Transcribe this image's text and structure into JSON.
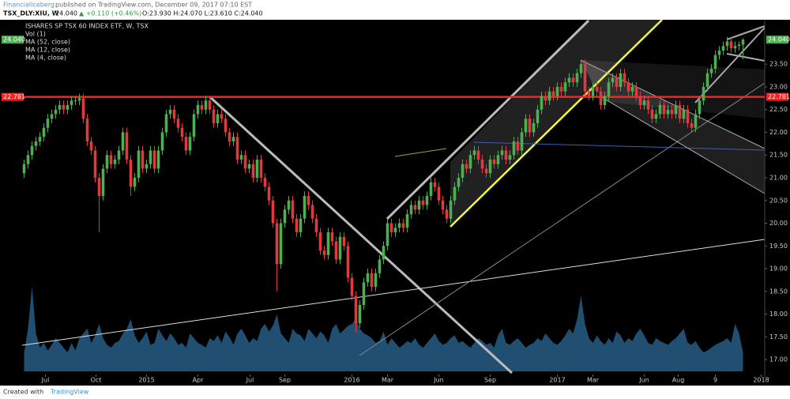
{
  "header": {
    "publisher": "FinancialIceberg",
    "published_note": "published on TradingView.com, December 09, 2017 07:10 EST",
    "symbol": "TSX_DLY:XIU, W",
    "last": "24.040",
    "change": "▲ +0.110 (+0.46%)",
    "ohlc": "O:23.930 H:24.070 L:23.610 C:24.040"
  },
  "footer": {
    "created": "Created with",
    "brand": "TradingView"
  },
  "chart_data": {
    "type": "candlestick",
    "title": "ISHARES SP TSX 60 INDEX ETF, W, TSX",
    "indicators": [
      "Vol (1)",
      "MA (52, close)",
      "MA (12, close)",
      "MA (4, close)"
    ],
    "open": [
      21.1,
      21.3,
      21.5,
      21.7,
      21.8,
      21.9,
      22.1,
      22.3,
      22.4,
      22.5,
      22.6,
      22.5,
      22.6,
      22.7,
      22.7,
      22.75,
      22.3,
      21.8,
      21.6,
      21.0,
      20.6,
      21.2,
      21.5,
      21.3,
      21.4,
      21.6,
      22.0,
      21.4,
      20.8,
      21.0,
      21.6,
      21.2,
      21.3,
      21.6,
      21.2,
      21.6,
      22.0,
      22.4,
      22.5,
      22.3,
      22.1,
      21.9,
      21.6,
      21.9,
      22.4,
      22.6,
      22.5,
      22.7,
      22.5,
      22.2,
      22.4,
      22.3,
      22.0,
      21.8,
      21.9,
      21.4,
      21.5,
      21.2,
      21.3,
      21.0,
      21.4,
      21.0,
      20.8,
      20.5,
      20.0,
      19.1,
      20.0,
      20.3,
      20.5,
      20.1,
      19.8,
      20.1,
      20.6,
      20.4,
      20.1,
      19.8,
      19.4,
      19.3,
      19.8,
      19.6,
      19.2,
      19.7,
      19.5,
      18.8,
      18.4,
      17.8,
      18.2,
      18.7,
      18.9,
      18.6,
      18.9,
      19.2,
      19.5,
      20.0,
      19.8,
      19.9,
      20.0,
      19.9,
      20.2,
      20.4,
      20.3,
      20.5,
      20.4,
      20.6,
      20.9,
      20.8,
      20.5,
      20.3,
      20.1,
      20.5,
      20.8,
      21.0,
      21.3,
      21.2,
      21.5,
      21.6,
      21.4,
      21.2,
      21.1,
      21.4,
      21.3,
      21.5,
      21.6,
      21.4,
      21.5,
      21.8,
      21.6,
      22.0,
      22.3,
      22.0,
      22.2,
      22.5,
      22.8,
      22.7,
      22.9,
      22.8,
      23.0,
      22.9,
      23.1,
      23.2,
      23.1,
      23.3,
      23.5,
      22.9,
      22.8,
      23.0,
      22.9,
      22.6,
      22.8,
      23.1,
      23.2,
      23.0,
      23.3,
      23.1,
      22.9,
      23.0,
      22.8,
      22.6,
      22.7,
      22.5,
      22.3,
      22.4,
      22.6,
      22.4,
      22.5,
      22.4,
      22.6,
      22.3,
      22.5,
      22.2,
      22.1,
      22.4,
      22.7,
      23.0,
      23.3,
      23.4,
      23.7,
      23.8,
      23.9,
      24.0,
      23.85,
      23.9,
      23.93
    ],
    "high": [
      21.4,
      21.6,
      21.8,
      21.9,
      22.0,
      22.2,
      22.4,
      22.5,
      22.6,
      22.7,
      22.7,
      22.7,
      22.8,
      22.8,
      22.85,
      22.85,
      22.4,
      21.9,
      21.7,
      21.1,
      21.3,
      21.6,
      21.6,
      21.5,
      21.7,
      22.1,
      22.1,
      21.5,
      21.1,
      21.7,
      21.7,
      21.4,
      21.7,
      21.7,
      21.7,
      22.1,
      22.5,
      22.6,
      22.6,
      22.4,
      22.2,
      22.0,
      22.0,
      22.5,
      22.7,
      22.7,
      22.8,
      22.8,
      22.6,
      22.5,
      22.5,
      22.4,
      22.1,
      22.0,
      22.0,
      21.6,
      21.6,
      21.4,
      21.4,
      21.5,
      21.5,
      21.1,
      20.9,
      20.6,
      20.1,
      20.1,
      20.4,
      20.6,
      20.6,
      20.2,
      20.2,
      20.7,
      20.7,
      20.5,
      20.2,
      19.9,
      19.5,
      19.9,
      19.9,
      19.7,
      19.8,
      19.8,
      19.6,
      18.9,
      18.5,
      18.3,
      18.8,
      19.0,
      19.0,
      19.0,
      19.3,
      19.6,
      20.1,
      20.1,
      20.0,
      20.1,
      20.1,
      20.3,
      20.5,
      20.5,
      20.6,
      20.6,
      20.7,
      21.0,
      21.0,
      20.9,
      20.6,
      20.4,
      20.6,
      20.9,
      21.1,
      21.4,
      21.4,
      21.6,
      21.7,
      21.7,
      21.5,
      21.3,
      21.5,
      21.5,
      21.6,
      21.7,
      21.7,
      21.6,
      21.9,
      21.9,
      22.1,
      22.4,
      22.4,
      22.3,
      22.6,
      22.9,
      22.9,
      23.0,
      23.0,
      23.1,
      23.1,
      23.2,
      23.3,
      23.3,
      23.4,
      23.6,
      23.6,
      23.0,
      23.1,
      23.1,
      23.0,
      22.9,
      23.2,
      23.3,
      23.3,
      23.4,
      23.4,
      23.2,
      23.1,
      23.1,
      22.9,
      22.8,
      22.8,
      22.6,
      22.5,
      22.7,
      22.7,
      22.6,
      22.6,
      22.7,
      22.7,
      22.6,
      22.6,
      22.3,
      22.5,
      22.8,
      23.1,
      23.4,
      23.5,
      23.8,
      23.9,
      24.0,
      24.1,
      24.1,
      24.0,
      24.0,
      24.07
    ],
    "low": [
      21.0,
      21.2,
      21.4,
      21.6,
      21.7,
      21.8,
      22.0,
      22.2,
      22.3,
      22.4,
      22.4,
      22.4,
      22.5,
      22.6,
      22.6,
      22.2,
      21.7,
      21.5,
      20.9,
      19.8,
      20.5,
      21.1,
      21.2,
      21.2,
      21.3,
      21.5,
      21.3,
      20.6,
      20.7,
      20.9,
      21.1,
      21.1,
      21.2,
      21.1,
      21.1,
      21.5,
      21.9,
      22.3,
      22.2,
      22.0,
      21.8,
      21.5,
      21.5,
      21.8,
      22.3,
      22.4,
      22.4,
      22.4,
      22.1,
      22.1,
      22.2,
      21.9,
      21.7,
      21.7,
      21.3,
      21.3,
      21.1,
      21.1,
      20.9,
      20.9,
      20.9,
      20.7,
      20.4,
      19.9,
      18.5,
      19.0,
      19.9,
      20.2,
      20.0,
      19.7,
      19.7,
      20.0,
      20.3,
      20.0,
      19.7,
      19.3,
      19.2,
      19.2,
      19.5,
      19.1,
      19.1,
      19.4,
      18.7,
      18.3,
      17.6,
      17.7,
      18.1,
      18.6,
      18.5,
      18.5,
      18.8,
      19.1,
      19.4,
      19.7,
      19.7,
      19.8,
      19.8,
      19.8,
      20.1,
      20.2,
      20.2,
      20.3,
      20.3,
      20.5,
      20.7,
      20.4,
      20.2,
      20.0,
      20.0,
      20.4,
      20.7,
      20.9,
      21.1,
      21.1,
      21.4,
      21.3,
      21.1,
      21.0,
      21.0,
      21.2,
      21.2,
      21.4,
      21.3,
      21.3,
      21.4,
      21.5,
      21.5,
      21.9,
      21.9,
      21.9,
      22.1,
      22.4,
      22.6,
      22.6,
      22.7,
      22.7,
      22.8,
      22.8,
      23.0,
      23.0,
      23.0,
      23.2,
      22.8,
      22.7,
      22.7,
      22.8,
      22.5,
      22.5,
      22.7,
      23.0,
      22.9,
      22.9,
      23.0,
      22.8,
      22.8,
      22.7,
      22.5,
      22.5,
      22.4,
      22.2,
      22.2,
      22.3,
      22.3,
      22.3,
      22.3,
      22.3,
      22.2,
      22.2,
      22.1,
      22.0,
      22.0,
      22.3,
      22.6,
      22.9,
      23.2,
      23.3,
      23.6,
      23.7,
      23.8,
      23.75,
      23.75,
      23.8,
      23.61
    ],
    "close": [
      21.3,
      21.5,
      21.7,
      21.8,
      21.9,
      22.1,
      22.3,
      22.4,
      22.5,
      22.6,
      22.5,
      22.6,
      22.7,
      22.7,
      22.75,
      22.3,
      21.8,
      21.6,
      21.0,
      20.6,
      21.2,
      21.5,
      21.3,
      21.4,
      21.6,
      22.0,
      21.4,
      20.8,
      21.0,
      21.6,
      21.2,
      21.3,
      21.6,
      21.2,
      21.6,
      22.0,
      22.4,
      22.5,
      22.3,
      22.1,
      21.9,
      21.6,
      21.9,
      22.4,
      22.6,
      22.5,
      22.7,
      22.5,
      22.2,
      22.4,
      22.3,
      22.0,
      21.8,
      21.9,
      21.4,
      21.5,
      21.2,
      21.3,
      21.0,
      21.4,
      21.0,
      20.8,
      20.5,
      20.0,
      19.1,
      20.0,
      20.3,
      20.5,
      20.1,
      19.8,
      20.1,
      20.6,
      20.4,
      20.1,
      19.8,
      19.4,
      19.3,
      19.8,
      19.6,
      19.2,
      19.7,
      19.5,
      18.8,
      18.4,
      17.8,
      18.2,
      18.7,
      18.9,
      18.6,
      18.9,
      19.2,
      19.5,
      20.0,
      19.8,
      19.9,
      20.0,
      19.9,
      20.2,
      20.4,
      20.3,
      20.5,
      20.4,
      20.6,
      20.9,
      20.8,
      20.5,
      20.3,
      20.1,
      20.5,
      20.8,
      21.0,
      21.3,
      21.2,
      21.5,
      21.6,
      21.4,
      21.2,
      21.1,
      21.4,
      21.3,
      21.5,
      21.6,
      21.4,
      21.5,
      21.8,
      21.6,
      22.0,
      22.3,
      22.0,
      22.2,
      22.5,
      22.8,
      22.7,
      22.9,
      22.8,
      23.0,
      22.9,
      23.1,
      23.2,
      23.1,
      23.3,
      23.5,
      22.9,
      22.8,
      23.0,
      22.9,
      22.6,
      22.8,
      23.1,
      23.2,
      23.0,
      23.3,
      23.1,
      22.9,
      23.0,
      22.8,
      22.6,
      22.7,
      22.5,
      22.3,
      22.4,
      22.6,
      22.4,
      22.5,
      22.4,
      22.6,
      22.3,
      22.5,
      22.2,
      22.1,
      22.4,
      22.7,
      23.0,
      23.3,
      23.4,
      23.7,
      23.8,
      23.9,
      24.0,
      23.85,
      23.9,
      23.93,
      24.04
    ],
    "volume": [
      20,
      45,
      90,
      40,
      25,
      30,
      22,
      28,
      35,
      30,
      25,
      20,
      30,
      22,
      35,
      40,
      45,
      30,
      38,
      50,
      35,
      28,
      25,
      30,
      32,
      40,
      45,
      55,
      38,
      30,
      35,
      42,
      28,
      30,
      45,
      38,
      32,
      40,
      35,
      28,
      30,
      25,
      40,
      35,
      30,
      28,
      25,
      35,
      32,
      38,
      30,
      42,
      36,
      28,
      40,
      45,
      38,
      30,
      35,
      32,
      45,
      50,
      42,
      48,
      60,
      40,
      35,
      30,
      45,
      40,
      38,
      32,
      45,
      40,
      35,
      42,
      38,
      30,
      45,
      50,
      40,
      44,
      48,
      50,
      55,
      45,
      40,
      38,
      35,
      30,
      32,
      42,
      28,
      35,
      30,
      25,
      28,
      32,
      30,
      35,
      28,
      25,
      30,
      35,
      40,
      32,
      28,
      30,
      35,
      38,
      30,
      32,
      28,
      25,
      30,
      35,
      32,
      28,
      30,
      25,
      38,
      45,
      30,
      28,
      32,
      35,
      30,
      25,
      28,
      30,
      35,
      32,
      40,
      35,
      30,
      28,
      32,
      38,
      45,
      40,
      55,
      80,
      50,
      35,
      30,
      38,
      32,
      28,
      35,
      30,
      42,
      38,
      30,
      35,
      32,
      40,
      45,
      38,
      30,
      28,
      35,
      32,
      30,
      28,
      32,
      35,
      40,
      45,
      30,
      28,
      32,
      25,
      20,
      22,
      25,
      28,
      30,
      32,
      35,
      30,
      50,
      40,
      20
    ],
    "up_color": "#4caf50",
    "down_color": "#e0393e",
    "volume_color": "#2b6a97",
    "xlim": [
      -0.5,
      187.5
    ],
    "xticks": [
      {
        "value": 5.4,
        "label": "Jul"
      },
      {
        "value": 18.2,
        "label": "Oct"
      },
      {
        "value": 31,
        "label": "2015"
      },
      {
        "value": 44,
        "label": "Apr"
      },
      {
        "value": 57.2,
        "label": "Jul"
      },
      {
        "value": 66,
        "label": "Sep"
      },
      {
        "value": 83,
        "label": "2016"
      },
      {
        "value": 92,
        "label": "Mar"
      },
      {
        "value": 105,
        "label": "Jun"
      },
      {
        "value": 118,
        "label": "Sep"
      },
      {
        "value": 135,
        "label": "2017"
      },
      {
        "value": 144,
        "label": "Mar"
      },
      {
        "value": 157,
        "label": "Jun"
      },
      {
        "value": 165.6,
        "label": "Aug"
      },
      {
        "value": 175,
        "label": "9"
      },
      {
        "value": 186.6,
        "label": "2018"
      }
    ],
    "ylim": [
      16.74,
      24.46
    ],
    "yticks": [
      {
        "value": 17,
        "label": "17.00"
      },
      {
        "value": 17.5,
        "label": "17.50"
      },
      {
        "value": 18,
        "label": "18.00"
      },
      {
        "value": 18.5,
        "label": "18.50"
      },
      {
        "value": 19,
        "label": "19.00"
      },
      {
        "value": 19.5,
        "label": "19.50"
      },
      {
        "value": 20,
        "label": "20.00"
      },
      {
        "value": 20.5,
        "label": "20.50"
      },
      {
        "value": 21,
        "label": "21.00"
      },
      {
        "value": 21.5,
        "label": "21.50"
      },
      {
        "value": 22,
        "label": "22.00"
      },
      {
        "value": 22.5,
        "label": "22.50"
      },
      {
        "value": 23,
        "label": "23.00"
      },
      {
        "value": 23.5,
        "label": "23.50"
      }
    ],
    "price_line": {
      "value": 24.04,
      "label": "24.040",
      "color": "#4caf50"
    },
    "hline": {
      "value": 22.781,
      "label": "22.781",
      "color": "#ff1f1f"
    }
  }
}
